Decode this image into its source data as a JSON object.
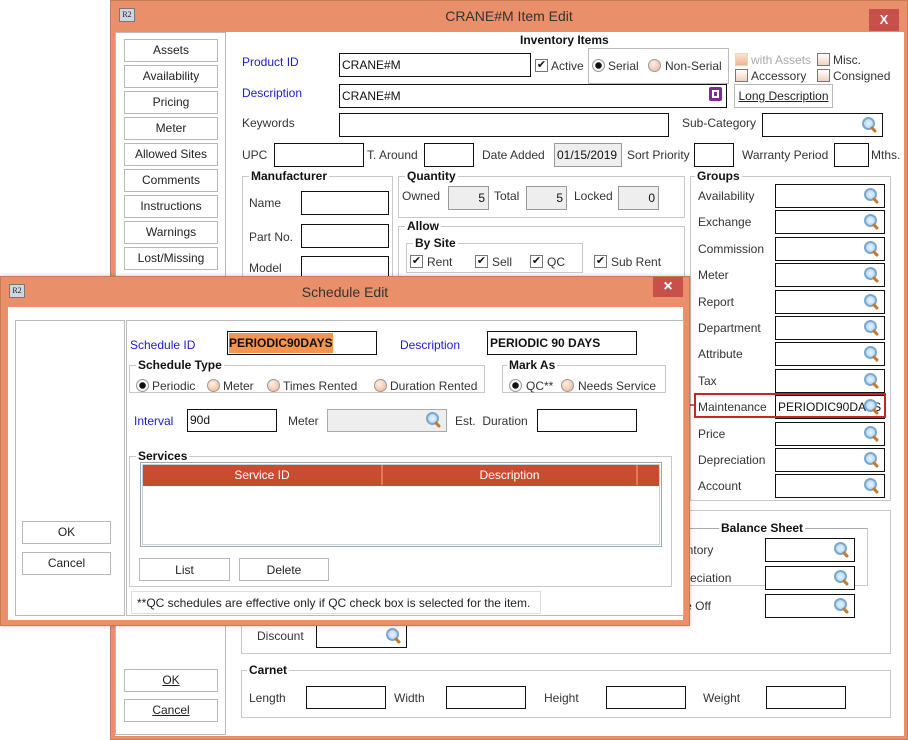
{
  "main": {
    "title": "CRANE#M Item Edit",
    "close": "X",
    "app_icon": "R2",
    "nav": [
      "Assets",
      "Availability",
      "Pricing",
      "Meter",
      "Allowed Sites",
      "Comments",
      "Instructions",
      "Warnings",
      "Lost/Missing"
    ],
    "section_title": "Inventory Items",
    "product_id_label": "Product ID",
    "product_id": "CRANE#M",
    "active_label": "Active",
    "active": true,
    "serial_label": "Serial",
    "non_serial_label": "Non-Serial",
    "serial_selected": "Serial",
    "with_assets_label": "with Assets",
    "misc_label": "Misc.",
    "accessory_label": "Accessory",
    "consigned_label": "Consigned",
    "description_label": "Description",
    "description": "CRANE#M",
    "long_description": "Long Description",
    "keywords_label": "Keywords",
    "keywords": "",
    "subcategory_label": "Sub-Category",
    "upc_label": "UPC",
    "t_around_label": "T. Around",
    "date_added_label": "Date Added",
    "date_added": "01/15/2019",
    "sort_priority_label": "Sort Priority",
    "warranty_label": "Warranty Period",
    "mths_label": "Mths.",
    "manufacturer": {
      "title": "Manufacturer",
      "name": "Name",
      "part_no": "Part No.",
      "model": "Model"
    },
    "quantity": {
      "title": "Quantity",
      "owned_label": "Owned",
      "owned": "5",
      "total_label": "Total",
      "total": "5",
      "locked_label": "Locked",
      "locked": "0"
    },
    "allow": {
      "title": "Allow",
      "by_site": "By Site",
      "rent": "Rent",
      "sell": "Sell",
      "qc": "QC",
      "sub_rent": "Sub Rent"
    },
    "groups": {
      "title": "Groups",
      "items": [
        "Availability",
        "Exchange",
        "Commission",
        "Meter",
        "Report",
        "Department",
        "Attribute",
        "Tax",
        "Maintenance",
        "Price",
        "Depreciation",
        "Account"
      ],
      "maintenance_value": "PERIODIC90DAYS"
    },
    "balance_sheet": {
      "title": "Balance Sheet",
      "items": [
        "Inventory",
        "Depreciation",
        "Write Off"
      ]
    },
    "discount_label": "Discount",
    "carnet": {
      "title": "Carnet",
      "length": "Length",
      "width": "Width",
      "height": "Height",
      "weight": "Weight"
    },
    "ok": "OK",
    "cancel": "Cancel"
  },
  "dialog": {
    "title": "Schedule Edit",
    "close": "×",
    "app_icon": "R2",
    "ok": "OK",
    "cancel": "Cancel",
    "schedule_id_label": "Schedule ID",
    "schedule_id": "PERIODIC90DAYS",
    "description_label": "Description",
    "description": "PERIODIC 90 DAYS",
    "schedule_type": {
      "title": "Schedule Type",
      "options": [
        "Periodic",
        "Meter",
        "Times Rented",
        "Duration Rented"
      ],
      "selected": "Periodic"
    },
    "mark_as": {
      "title": "Mark As",
      "options": [
        "QC**",
        "Needs Service"
      ],
      "selected": "QC**"
    },
    "interval_label": "Interval",
    "interval": "90d",
    "meter_label": "Meter",
    "est_duration_label": "Est.  Duration",
    "services": {
      "title": "Services",
      "columns": [
        "Service ID",
        "Description"
      ],
      "rows": []
    },
    "list": "List",
    "delete": "Delete",
    "note": "**QC schedules are effective only if QC check box is selected for the item."
  },
  "colors": {
    "titlebar": "#E9906A",
    "close": "#C8504A",
    "table_header": "#C84C30",
    "highlight": "#F4944E",
    "callout": "#C0282C"
  }
}
